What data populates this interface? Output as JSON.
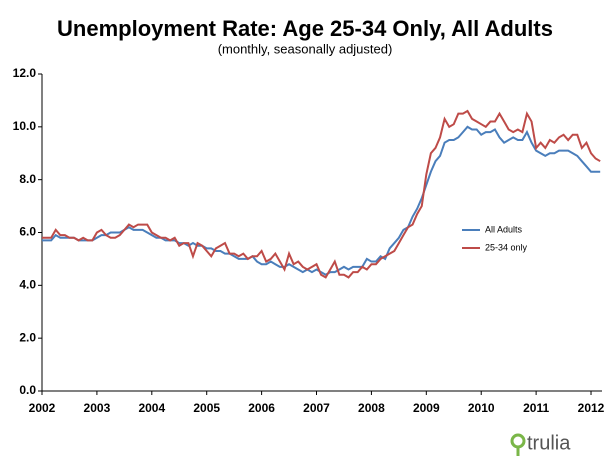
{
  "chart_data": {
    "type": "line",
    "title": "Unemployment Rate: Age 25-34 Only, All Adults",
    "subtitle": "(monthly, seasonally adjusted)",
    "logo": "trulia",
    "x": [
      2002,
      2002.083,
      2002.167,
      2002.25,
      2002.333,
      2002.417,
      2002.5,
      2002.583,
      2002.667,
      2002.75,
      2002.833,
      2002.917,
      2003,
      2003.083,
      2003.167,
      2003.25,
      2003.333,
      2003.417,
      2003.5,
      2003.583,
      2003.667,
      2003.75,
      2003.833,
      2003.917,
      2004,
      2004.083,
      2004.167,
      2004.25,
      2004.333,
      2004.417,
      2004.5,
      2004.583,
      2004.667,
      2004.75,
      2004.833,
      2004.917,
      2005,
      2005.083,
      2005.167,
      2005.25,
      2005.333,
      2005.417,
      2005.5,
      2005.583,
      2005.667,
      2005.75,
      2005.833,
      2005.917,
      2006,
      2006.083,
      2006.167,
      2006.25,
      2006.333,
      2006.417,
      2006.5,
      2006.583,
      2006.667,
      2006.75,
      2006.833,
      2006.917,
      2007,
      2007.083,
      2007.167,
      2007.25,
      2007.333,
      2007.417,
      2007.5,
      2007.583,
      2007.667,
      2007.75,
      2007.833,
      2007.917,
      2008,
      2008.083,
      2008.167,
      2008.25,
      2008.333,
      2008.417,
      2008.5,
      2008.583,
      2008.667,
      2008.75,
      2008.833,
      2008.917,
      2009,
      2009.083,
      2009.167,
      2009.25,
      2009.333,
      2009.417,
      2009.5,
      2009.583,
      2009.667,
      2009.75,
      2009.833,
      2009.917,
      2010,
      2010.083,
      2010.167,
      2010.25,
      2010.333,
      2010.417,
      2010.5,
      2010.583,
      2010.667,
      2010.75,
      2010.833,
      2010.917,
      2011,
      2011.083,
      2011.167,
      2011.25,
      2011.333,
      2011.417,
      2011.5,
      2011.583,
      2011.667,
      2011.75,
      2011.833,
      2011.917,
      2012,
      2012.083,
      2012.167
    ],
    "series": [
      {
        "name": "All Adults",
        "color": "#4a7ebb",
        "values": [
          5.7,
          5.7,
          5.7,
          5.9,
          5.8,
          5.8,
          5.8,
          5.8,
          5.7,
          5.7,
          5.7,
          5.7,
          5.8,
          5.9,
          5.9,
          6.0,
          6.0,
          6.0,
          6.1,
          6.2,
          6.1,
          6.1,
          6.1,
          6.0,
          5.9,
          5.8,
          5.8,
          5.7,
          5.7,
          5.7,
          5.6,
          5.6,
          5.5,
          5.6,
          5.5,
          5.5,
          5.4,
          5.4,
          5.3,
          5.3,
          5.2,
          5.2,
          5.1,
          5.0,
          5.0,
          5.0,
          5.1,
          4.9,
          4.8,
          4.8,
          4.9,
          4.8,
          4.7,
          4.7,
          4.8,
          4.7,
          4.6,
          4.5,
          4.6,
          4.5,
          4.6,
          4.5,
          4.4,
          4.5,
          4.5,
          4.6,
          4.7,
          4.6,
          4.7,
          4.7,
          4.7,
          5.0,
          4.9,
          4.9,
          5.1,
          5.0,
          5.4,
          5.6,
          5.8,
          6.1,
          6.2,
          6.6,
          6.9,
          7.3,
          7.8,
          8.3,
          8.7,
          8.9,
          9.4,
          9.5,
          9.5,
          9.6,
          9.8,
          10.0,
          9.9,
          9.9,
          9.7,
          9.8,
          9.8,
          9.9,
          9.6,
          9.4,
          9.5,
          9.6,
          9.5,
          9.5,
          9.8,
          9.4,
          9.1,
          9.0,
          8.9,
          9.0,
          9.0,
          9.1,
          9.1,
          9.1,
          9.0,
          8.9,
          8.7,
          8.5,
          8.3,
          8.3,
          8.3
        ]
      },
      {
        "name": "25-34 only",
        "color": "#be4b48",
        "values": [
          5.8,
          5.8,
          5.8,
          6.1,
          5.9,
          5.9,
          5.8,
          5.8,
          5.7,
          5.8,
          5.7,
          5.7,
          6.0,
          6.1,
          5.9,
          5.8,
          5.8,
          5.9,
          6.1,
          6.3,
          6.2,
          6.3,
          6.3,
          6.3,
          6.0,
          5.9,
          5.8,
          5.8,
          5.7,
          5.8,
          5.5,
          5.6,
          5.6,
          5.1,
          5.6,
          5.5,
          5.3,
          5.1,
          5.4,
          5.5,
          5.6,
          5.2,
          5.2,
          5.1,
          5.2,
          5.0,
          5.1,
          5.1,
          5.3,
          4.9,
          5.0,
          5.2,
          4.9,
          4.6,
          5.2,
          4.8,
          4.9,
          4.7,
          4.6,
          4.7,
          4.8,
          4.4,
          4.3,
          4.6,
          4.9,
          4.4,
          4.4,
          4.3,
          4.5,
          4.5,
          4.7,
          4.6,
          4.8,
          4.8,
          5.0,
          5.1,
          5.2,
          5.3,
          5.6,
          5.9,
          6.2,
          6.3,
          6.7,
          7.0,
          8.2,
          9.0,
          9.2,
          9.6,
          10.3,
          10.0,
          10.1,
          10.5,
          10.5,
          10.6,
          10.3,
          10.2,
          10.1,
          10.0,
          10.2,
          10.2,
          10.5,
          10.2,
          9.9,
          9.8,
          9.9,
          9.8,
          10.5,
          10.2,
          9.2,
          9.4,
          9.2,
          9.5,
          9.4,
          9.6,
          9.7,
          9.5,
          9.7,
          9.7,
          9.2,
          9.4,
          9.0,
          8.8,
          8.7
        ]
      }
    ],
    "xlim": [
      2002,
      2012.2
    ],
    "xticks": [
      2002,
      2003,
      2004,
      2005,
      2006,
      2007,
      2008,
      2009,
      2010,
      2011,
      2012
    ],
    "ylim": [
      0,
      12
    ],
    "yticks": [
      {
        "value": 0,
        "label": "0.0"
      },
      {
        "value": 2,
        "label": "2.0"
      },
      {
        "value": 4,
        "label": "4.0"
      },
      {
        "value": 6,
        "label": "6.0"
      },
      {
        "value": 8,
        "label": "8.0"
      },
      {
        "value": 10,
        "label": "10.0"
      },
      {
        "value": 12,
        "label": "12.0"
      }
    ],
    "grid": false
  }
}
